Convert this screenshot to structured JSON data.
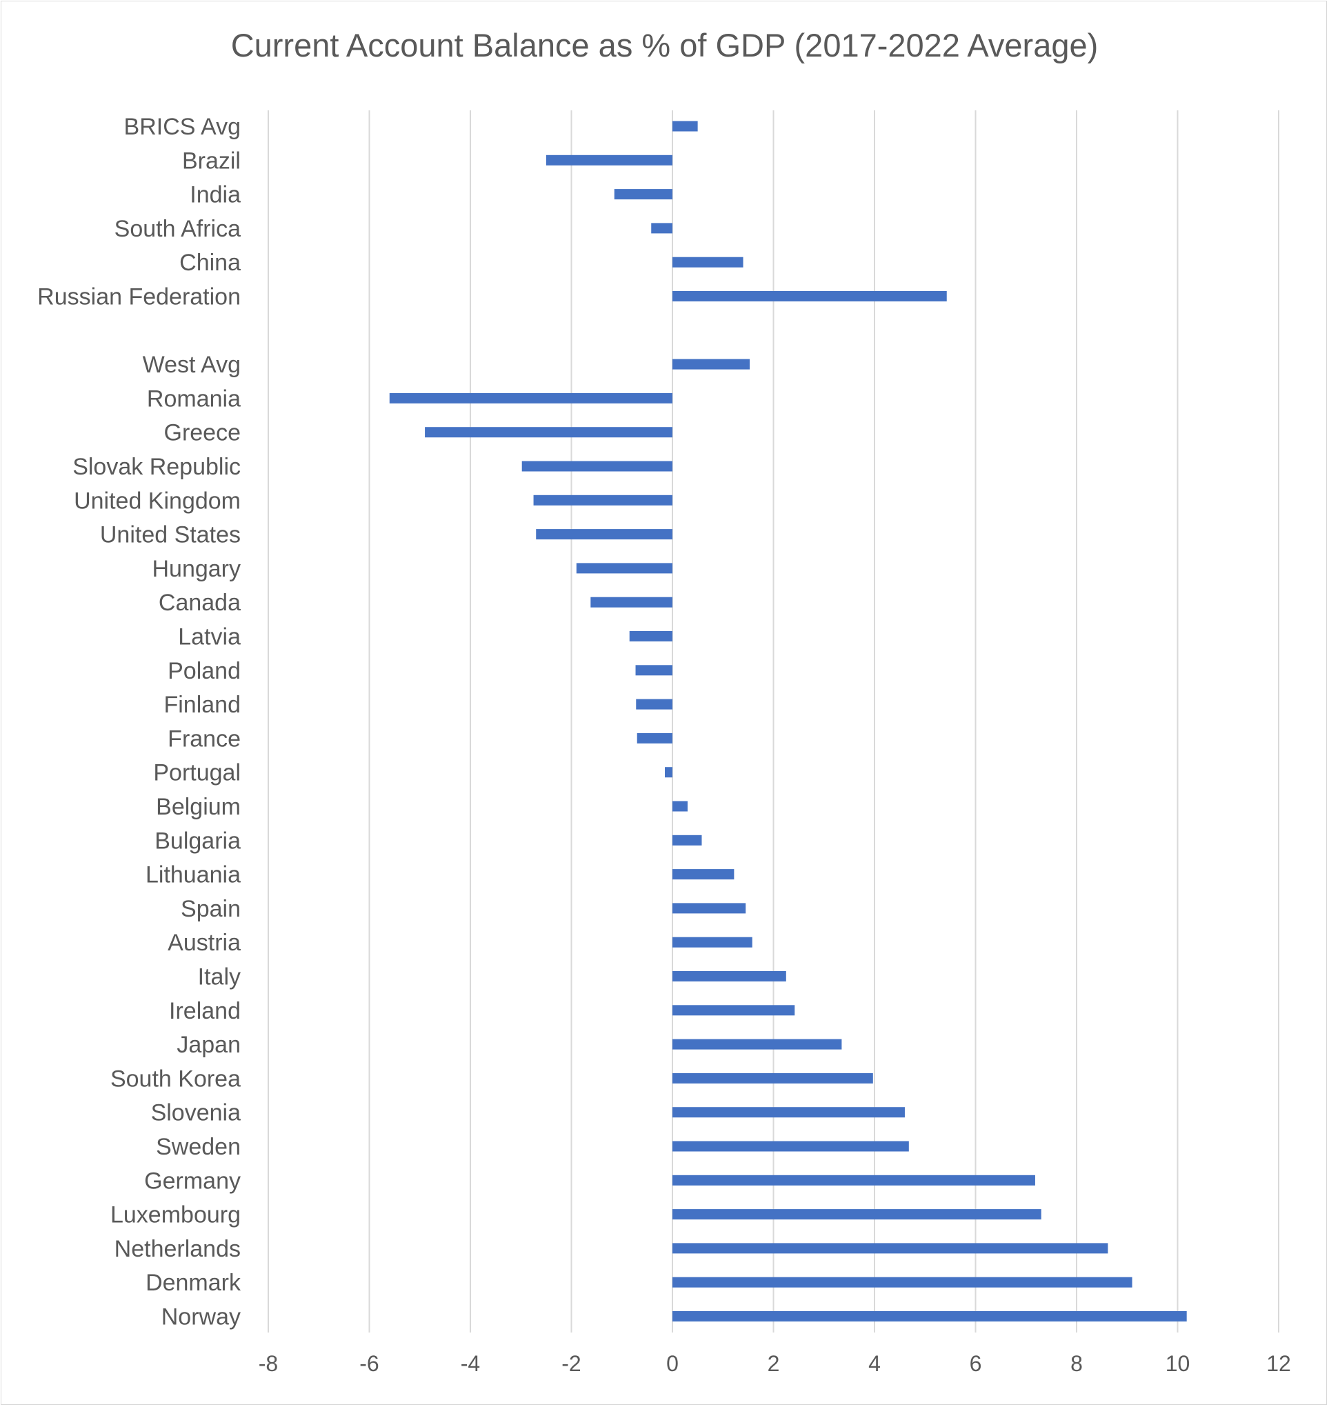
{
  "chart_data": {
    "type": "bar",
    "orientation": "horizontal",
    "title": "Current Account Balance as % of GDP (2017-2022 Average)",
    "xlabel": "",
    "ylabel": "",
    "xlim": [
      -8,
      12
    ],
    "x_ticks": [
      -8,
      -6,
      -4,
      -2,
      0,
      2,
      4,
      6,
      8,
      10,
      12
    ],
    "grid": true,
    "legend": "none",
    "bar_color": "#4472c4",
    "categories": [
      "BRICS Avg",
      "Brazil",
      "India",
      "South Africa",
      "China",
      "Russian Federation",
      "",
      "West Avg",
      "Romania",
      "Greece",
      "Slovak Republic",
      "United Kingdom",
      "United States",
      "Hungary",
      "Canada",
      "Latvia",
      "Poland",
      "Finland",
      "France",
      "Portugal",
      "Belgium",
      "Bulgaria",
      "Lithuania",
      "Spain",
      "Austria",
      "Italy",
      "Ireland",
      "Japan",
      "South Korea",
      "Slovenia",
      "Sweden",
      "Germany",
      "Luxembourg",
      "Netherlands",
      "Denmark",
      "Norway"
    ],
    "values": [
      0.5,
      -2.5,
      -1.15,
      -0.42,
      1.4,
      5.43,
      null,
      1.53,
      -5.6,
      -4.9,
      -2.98,
      -2.75,
      -2.7,
      -1.9,
      -1.62,
      -0.85,
      -0.73,
      -0.72,
      -0.7,
      -0.15,
      0.3,
      0.58,
      1.22,
      1.45,
      1.58,
      2.25,
      2.42,
      3.35,
      3.97,
      4.6,
      4.68,
      7.18,
      7.3,
      8.62,
      9.1,
      10.18
    ]
  }
}
